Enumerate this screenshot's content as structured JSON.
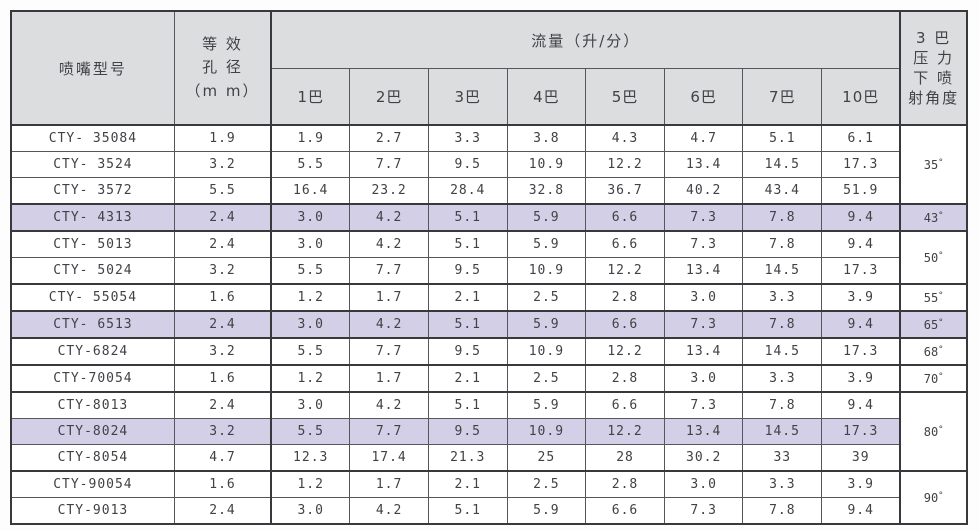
{
  "table": {
    "headers": {
      "model": "喷嘴型号",
      "aperture": [
        "等 效",
        "孔 径",
        "（m m）"
      ],
      "flow_title": "流量（升/分）",
      "pressures": [
        "1巴",
        "2巴",
        "3巴",
        "4巴",
        "5巴",
        "6巴",
        "7巴",
        "10巴"
      ],
      "angle": [
        "3 巴",
        "压 力",
        "下 喷",
        "射角度"
      ]
    },
    "rows": [
      {
        "model": "CTY- 35084",
        "aperture": "1.9",
        "flows": [
          "1.9",
          "2.7",
          "3.3",
          "3.8",
          "4.3",
          "4.7",
          "5.1",
          "6.1"
        ],
        "highlighted": false
      },
      {
        "model": "CTY- 3524",
        "aperture": "3.2",
        "flows": [
          "5.5",
          "7.7",
          "9.5",
          "10.9",
          "12.2",
          "13.4",
          "14.5",
          "17.3"
        ],
        "highlighted": false
      },
      {
        "model": "CTY- 3572",
        "aperture": "5.5",
        "flows": [
          "16.4",
          "23.2",
          "28.4",
          "32.8",
          "36.7",
          "40.2",
          "43.4",
          "51.9"
        ],
        "highlighted": false
      },
      {
        "model": "CTY- 4313",
        "aperture": "2.4",
        "flows": [
          "3.0",
          "4.2",
          "5.1",
          "5.9",
          "6.6",
          "7.3",
          "7.8",
          "9.4"
        ],
        "highlighted": true
      },
      {
        "model": "CTY- 5013",
        "aperture": "2.4",
        "flows": [
          "3.0",
          "4.2",
          "5.1",
          "5.9",
          "6.6",
          "7.3",
          "7.8",
          "9.4"
        ],
        "highlighted": false
      },
      {
        "model": "CTY- 5024",
        "aperture": "3.2",
        "flows": [
          "5.5",
          "7.7",
          "9.5",
          "10.9",
          "12.2",
          "13.4",
          "14.5",
          "17.3"
        ],
        "highlighted": false
      },
      {
        "model": "CTY- 55054",
        "aperture": "1.6",
        "flows": [
          "1.2",
          "1.7",
          "2.1",
          "2.5",
          "2.8",
          "3.0",
          "3.3",
          "3.9"
        ],
        "highlighted": false
      },
      {
        "model": "CTY- 6513",
        "aperture": "2.4",
        "flows": [
          "3.0",
          "4.2",
          "5.1",
          "5.9",
          "6.6",
          "7.3",
          "7.8",
          "9.4"
        ],
        "highlighted": true
      },
      {
        "model": "CTY-6824",
        "aperture": "3.2",
        "flows": [
          "5.5",
          "7.7",
          "9.5",
          "10.9",
          "12.2",
          "13.4",
          "14.5",
          "17.3"
        ],
        "highlighted": false
      },
      {
        "model": "CTY-70054",
        "aperture": "1.6",
        "flows": [
          "1.2",
          "1.7",
          "2.1",
          "2.5",
          "2.8",
          "3.0",
          "3.3",
          "3.9"
        ],
        "highlighted": false
      },
      {
        "model": "CTY-8013",
        "aperture": "2.4",
        "flows": [
          "3.0",
          "4.2",
          "5.1",
          "5.9",
          "6.6",
          "7.3",
          "7.8",
          "9.4"
        ],
        "highlighted": false
      },
      {
        "model": "CTY-8024",
        "aperture": "3.2",
        "flows": [
          "5.5",
          "7.7",
          "9.5",
          "10.9",
          "12.2",
          "13.4",
          "14.5",
          "17.3"
        ],
        "highlighted": true
      },
      {
        "model": "CTY-8054",
        "aperture": "4.7",
        "flows": [
          "12.3",
          "17.4",
          "21.3",
          "25",
          "28",
          "30.2",
          "33",
          "39"
        ],
        "highlighted": false
      },
      {
        "model": "CTY-90054",
        "aperture": "1.6",
        "flows": [
          "1.2",
          "1.7",
          "2.1",
          "2.5",
          "2.8",
          "3.0",
          "3.3",
          "3.9"
        ],
        "highlighted": false
      },
      {
        "model": "CTY-9013",
        "aperture": "2.4",
        "flows": [
          "3.0",
          "4.2",
          "5.1",
          "5.9",
          "6.6",
          "7.3",
          "7.8",
          "9.4"
        ],
        "highlighted": false
      }
    ],
    "angle_groups": [
      {
        "angle": "35",
        "degree_symbol": "°",
        "rows": 3,
        "highlighted": false
      },
      {
        "angle": "43",
        "degree_symbol": "°",
        "rows": 1,
        "highlighted": true
      },
      {
        "angle": "50",
        "degree_symbol": "°",
        "rows": 2,
        "highlighted": false
      },
      {
        "angle": "55",
        "degree_symbol": "°",
        "rows": 1,
        "highlighted": false
      },
      {
        "angle": "65",
        "degree_symbol": "°",
        "rows": 1,
        "highlighted": true
      },
      {
        "angle": "68",
        "degree_symbol": "°",
        "rows": 1,
        "highlighted": false
      },
      {
        "angle": "70",
        "degree_symbol": "°",
        "rows": 1,
        "highlighted": false
      },
      {
        "angle": "80",
        "degree_symbol": "°",
        "rows": 3,
        "highlighted": false
      },
      {
        "angle": "90",
        "degree_symbol": "°",
        "rows": 2,
        "highlighted": false
      }
    ],
    "colors": {
      "header_bg": "#dcdddf",
      "highlight_bg": "#d3cfe6",
      "border": "#39393d",
      "text": "#414146"
    }
  }
}
